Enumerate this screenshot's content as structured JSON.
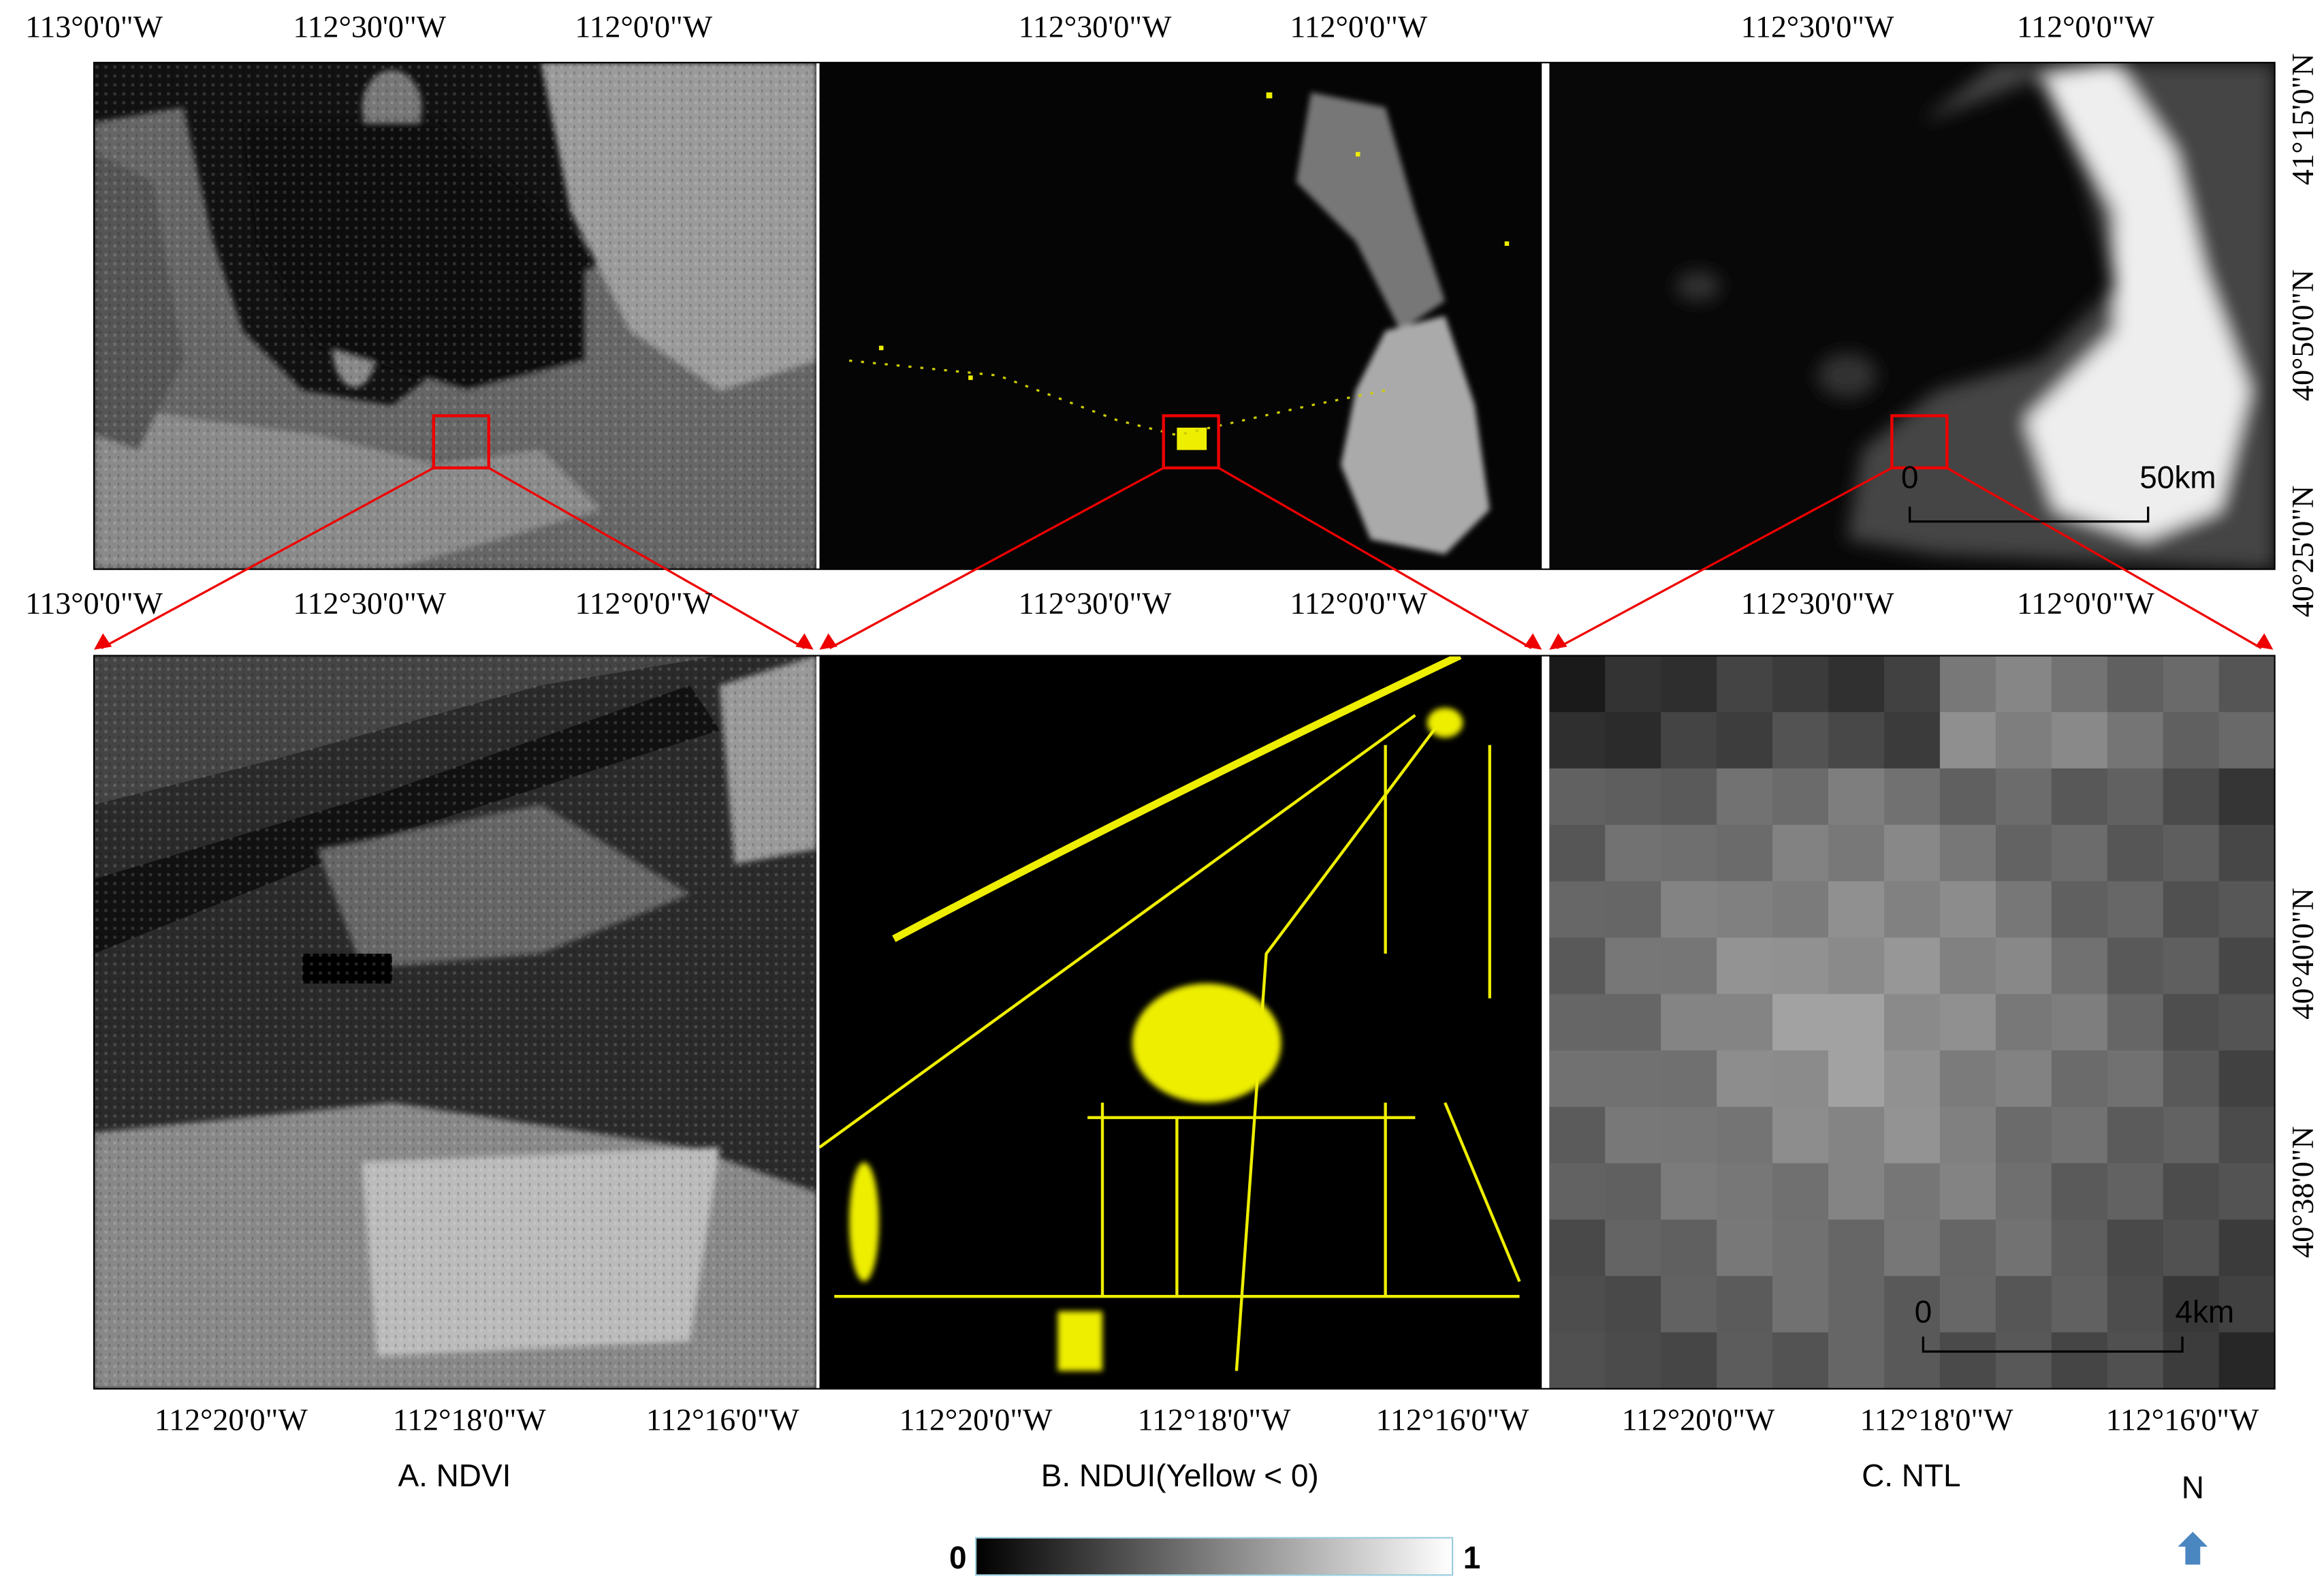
{
  "panels": [
    {
      "label": "A. NDVI",
      "top_x_labels": [
        "113°0'0\"W",
        "112°30'0\"W",
        "112°0'0\"W"
      ],
      "mid_x_labels": [
        "113°0'0\"W",
        "112°30'0\"W",
        "112°0'0\"W"
      ],
      "bottom_x_labels": [
        "112°20'0\"W",
        "112°18'0\"W",
        "112°16'0\"W"
      ]
    },
    {
      "label": "B. NDUI(Yellow < 0)",
      "top_x_labels": [
        "112°30'0\"W",
        "112°0'0\"W"
      ],
      "mid_x_labels": [
        "112°30'0\"W",
        "112°0'0\"W"
      ],
      "bottom_x_labels": [
        "112°20'0\"W",
        "112°18'0\"W",
        "112°16'0\"W"
      ]
    },
    {
      "label": "C. NTL",
      "top_x_labels": [
        "112°30'0\"W",
        "112°0'0\"W"
      ],
      "mid_x_labels": [
        "112°30'0\"W",
        "112°0'0\"W"
      ],
      "bottom_x_labels": [
        "112°20'0\"W",
        "112°18'0\"W",
        "112°16'0\"W"
      ],
      "top_y_labels": [
        "41°15'0\"N",
        "40°50'0\"N",
        "40°25'0\"N"
      ],
      "bottom_y_labels": [
        "40°40'0\"N",
        "40°38'0\"N"
      ],
      "top_scale_bar": [
        "0",
        "50km"
      ],
      "bottom_scale_bar": [
        "0",
        "4km"
      ]
    }
  ],
  "colorbar": {
    "min_label": "0",
    "max_label": "1"
  },
  "north_arrow": "N"
}
